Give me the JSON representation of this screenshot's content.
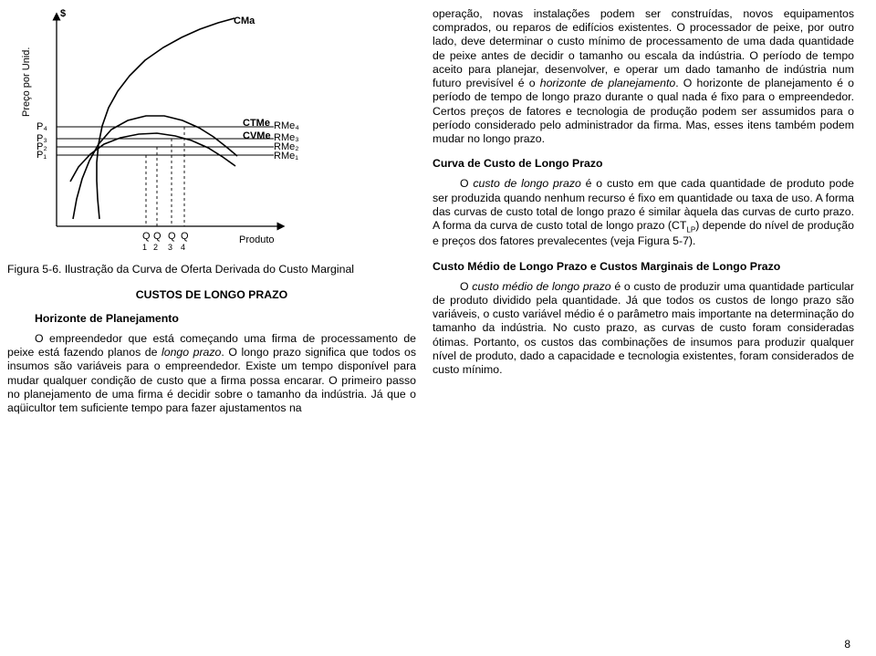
{
  "chart": {
    "type": "line",
    "y_axis_label": "$",
    "y_axis_title": "Preço por Unid.",
    "x_axis_label": "Produto",
    "curve_labels": {
      "cma": "CMa",
      "ctme": "CTMe",
      "cvme": "CVMe"
    },
    "p_labels": [
      "P₄",
      "P₃",
      "P₂",
      "P₁"
    ],
    "q_labels": [
      "Q",
      "Q",
      "Q",
      "Q"
    ],
    "q_sub": [
      "1",
      "2",
      "3",
      "4"
    ],
    "rme_labels": [
      "RMe₄",
      "RMe₃",
      "RMe₂",
      "RMe₁"
    ],
    "axis_color": "#000000",
    "curve_color": "#000000",
    "background_color": "#ffffff",
    "line_width": 1.6,
    "dash_pattern": "3 3",
    "font_size_labels": 11,
    "xlim": [
      0,
      260
    ],
    "ylim": [
      0,
      235
    ],
    "cma": [
      [
        95,
        232
      ],
      [
        93,
        210
      ],
      [
        92,
        190
      ],
      [
        92,
        170
      ],
      [
        94,
        150
      ],
      [
        98,
        130
      ],
      [
        105,
        110
      ],
      [
        115,
        92
      ],
      [
        128,
        75
      ],
      [
        145,
        58
      ],
      [
        165,
        44
      ],
      [
        185,
        33
      ],
      [
        205,
        24
      ],
      [
        225,
        17
      ],
      [
        243,
        12
      ]
    ],
    "ctme": [
      [
        66,
        232
      ],
      [
        70,
        210
      ],
      [
        76,
        188
      ],
      [
        84,
        168
      ],
      [
        94,
        150
      ],
      [
        108,
        134
      ],
      [
        126,
        124
      ],
      [
        146,
        119
      ],
      [
        166,
        119
      ],
      [
        186,
        124
      ],
      [
        204,
        132
      ],
      [
        220,
        142
      ],
      [
        234,
        153
      ],
      [
        246,
        163
      ]
    ],
    "cvme": [
      [
        63,
        191
      ],
      [
        72,
        175
      ],
      [
        85,
        161
      ],
      [
        100,
        150
      ],
      [
        118,
        143
      ],
      [
        138,
        139
      ],
      [
        158,
        138
      ],
      [
        178,
        141
      ],
      [
        196,
        146
      ],
      [
        214,
        154
      ],
      [
        230,
        164
      ],
      [
        244,
        174
      ]
    ],
    "p_y": [
      131,
      144,
      153,
      162
    ],
    "q_x": [
      146,
      158,
      174,
      188
    ],
    "p_right_x": 248
  },
  "left": {
    "caption": "Figura 5-6. Ilustração da Curva de Oferta Derivada do Custo Marginal",
    "heading1": "CUSTOS DE LONGO PRAZO",
    "heading2": "Horizonte de Planejamento",
    "para1a": "O empreendedor que está começando uma firma de processamento de peixe está fazendo planos de ",
    "para1b": "longo prazo",
    "para1c": ". O longo prazo significa que todos os insumos são variáveis para o empreendedor. Existe um tempo disponível para mudar qualquer condição de custo que a firma possa encarar. O primeiro passo no planejamento de uma firma é decidir sobre o tamanho da indústria. Já que o aqüicultor tem suficiente tempo para fazer ajustamentos na"
  },
  "right": {
    "para1": "operação, novas instalações podem ser construídas, novos equipamentos comprados, ou reparos de edifícios existentes. O processador de peixe, por outro lado, deve determinar o custo mínimo de processamento de uma dada quantidade de peixe antes de decidir o tamanho ou escala da indústria. O período de tempo aceito para planejar, desenvolver, e operar um dado tamanho de indústria num futuro previsível é o ",
    "para1b": "horizonte de planejamento",
    "para1c": ". O horizonte de planejamento é o período de tempo de longo prazo durante o qual nada é fixo para o empreendedor. Certos preços de fatores e tecnologia de produção podem ser assumidos para o período considerado pelo administrador da firma. Mas, esses itens também podem mudar no longo prazo.",
    "heading2": "Curva de Custo de Longo Prazo",
    "para2a": "O ",
    "para2b": "custo de longo prazo",
    "para2c": " é o custo em que cada quantidade de produto pode ser produzida quando nenhum recurso é fixo em quantidade ou taxa de uso. A forma das curvas de custo total de longo prazo é similar àquela das curvas de curto prazo. A forma da curva de custo total de longo prazo (CT",
    "para2sub": "LP",
    "para2d": ") depende do nível de produção e preços dos fatores prevalecentes (veja Figura 5-7).",
    "heading3": "Custo Médio de Longo Prazo e Custos Marginais de Longo Prazo",
    "para3a": "O ",
    "para3b": "custo médio de longo prazo",
    "para3c": " é o custo de produzir uma quantidade particular de produto dividido pela quantidade. Já que todos os custos de longo prazo são variáveis, o custo variável médio é o parâmetro mais importante na determinação do tamanho da indústria. No custo prazo, as curvas de custo foram consideradas ótimas. Portanto, os custos das combinações de insumos para produzir qualquer nível de produto, dado a capacidade e tecnologia existentes, foram considerados de custo mínimo."
  },
  "page_number": "8"
}
